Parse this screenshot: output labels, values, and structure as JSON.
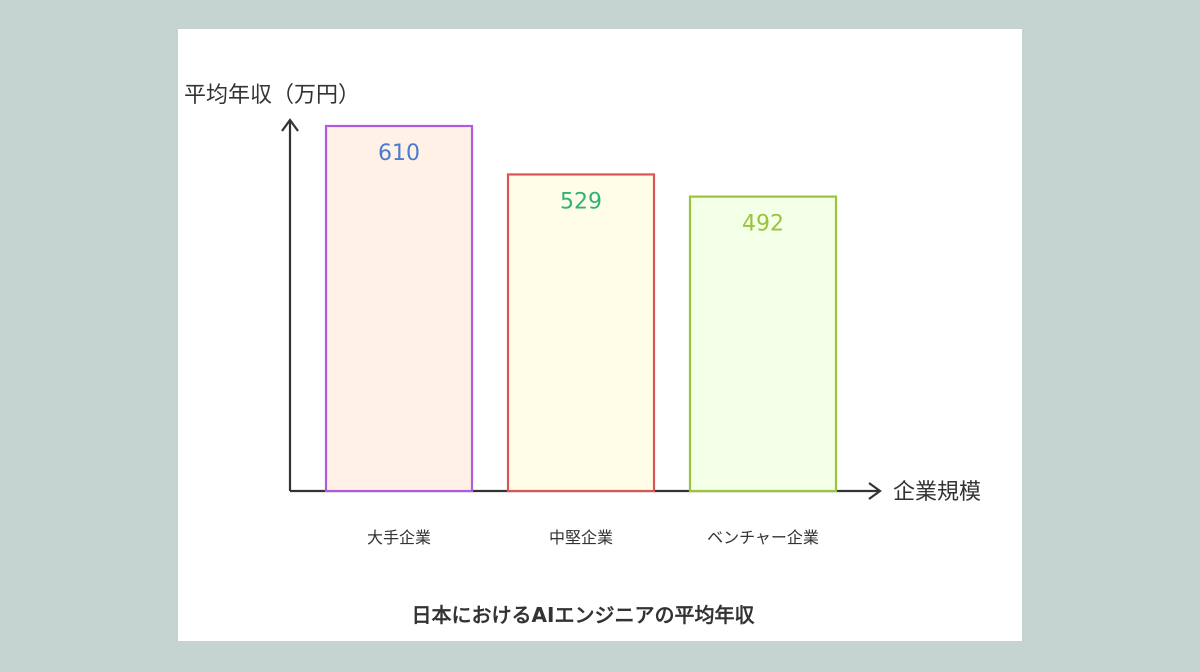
{
  "chart_data": {
    "type": "bar",
    "title": "日本におけるAIエンジニアの平均年収",
    "ylabel": "平均年収（万円）",
    "xlabel": "企業規模",
    "categories": [
      "大手企業",
      "中堅企業",
      "ベンチャー企業"
    ],
    "values": [
      610,
      529,
      492
    ],
    "ylim": [
      0,
      610
    ],
    "grid": false,
    "colors": {
      "border": [
        "#b05ae0",
        "#d95454",
        "#9ac43c"
      ],
      "fill": [
        "#fff1e6",
        "#fffde8",
        "#f4ffe8"
      ],
      "label": [
        "#4a7bd0",
        "#32b27a",
        "#9ac43c"
      ]
    }
  }
}
